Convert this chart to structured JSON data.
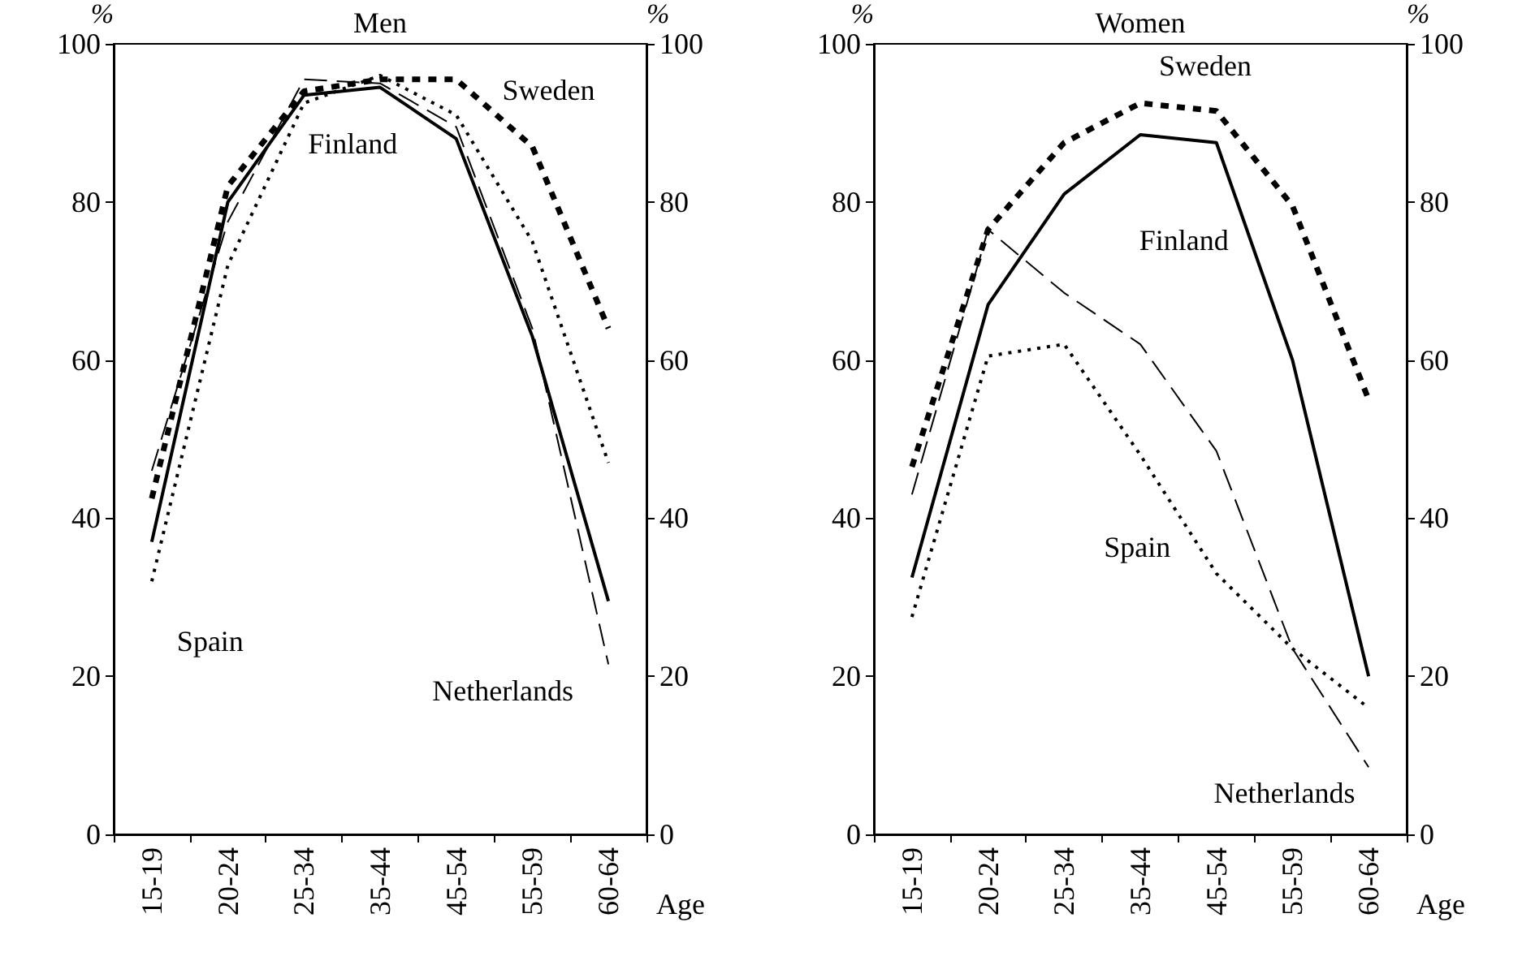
{
  "chart_data": [
    {
      "type": "line",
      "title": "Men",
      "xlabel": "Age",
      "ylabel": "%",
      "y2label": "%",
      "categories": [
        "15-19",
        "20-24",
        "25-34",
        "35-44",
        "45-54",
        "55-59",
        "60-64"
      ],
      "ylim": [
        0,
        100
      ],
      "yticks": [
        0,
        20,
        40,
        60,
        80,
        100
      ],
      "y2lim": [
        0,
        100
      ],
      "y2ticks": [
        0,
        20,
        40,
        60,
        80,
        100
      ],
      "grid": false,
      "legend": false,
      "series": [
        {
          "name": "Finland",
          "color": "#000000",
          "line_style": "solid",
          "values": [
            37,
            80,
            93.5,
            94.5,
            88,
            63,
            29.5
          ]
        },
        {
          "name": "Sweden",
          "color": "#000000",
          "line_style": "dashed",
          "values": [
            42.5,
            82,
            94,
            95.5,
            95.5,
            87,
            64
          ]
        },
        {
          "name": "Spain",
          "color": "#000000",
          "line_style": "dotted",
          "values": [
            32,
            72,
            92.5,
            96,
            91,
            75,
            47
          ]
        },
        {
          "name": "Netherlands",
          "color": "#000000",
          "line_style": "dashed",
          "values": [
            46,
            77.5,
            95.5,
            95,
            89.5,
            64,
            21.5
          ]
        }
      ]
    },
    {
      "type": "line",
      "title": "Women",
      "xlabel": "Age",
      "ylabel": "%",
      "y2label": "%",
      "categories": [
        "15-19",
        "20-24",
        "25-34",
        "35-44",
        "45-54",
        "55-59",
        "60-64"
      ],
      "ylim": [
        0,
        100
      ],
      "yticks": [
        0,
        20,
        40,
        60,
        80,
        100
      ],
      "y2lim": [
        0,
        100
      ],
      "y2ticks": [
        0,
        20,
        40,
        60,
        80,
        100
      ],
      "grid": false,
      "legend": false,
      "series": [
        {
          "name": "Finland",
          "color": "#000000",
          "line_style": "solid",
          "values": [
            32.5,
            67,
            81,
            88.5,
            87.5,
            60,
            20
          ]
        },
        {
          "name": "Sweden",
          "color": "#000000",
          "line_style": "dashed",
          "values": [
            46.5,
            76.5,
            87.5,
            92.5,
            91.5,
            79.5,
            55
          ]
        },
        {
          "name": "Spain",
          "color": "#000000",
          "line_style": "dotted",
          "values": [
            27.5,
            60.5,
            62,
            48,
            33,
            23.5,
            16
          ]
        },
        {
          "name": "Netherlands",
          "color": "#000000",
          "line_style": "dashed",
          "values": [
            43,
            76.5,
            68.5,
            62,
            48.5,
            23.5,
            8.5
          ]
        }
      ]
    }
  ]
}
